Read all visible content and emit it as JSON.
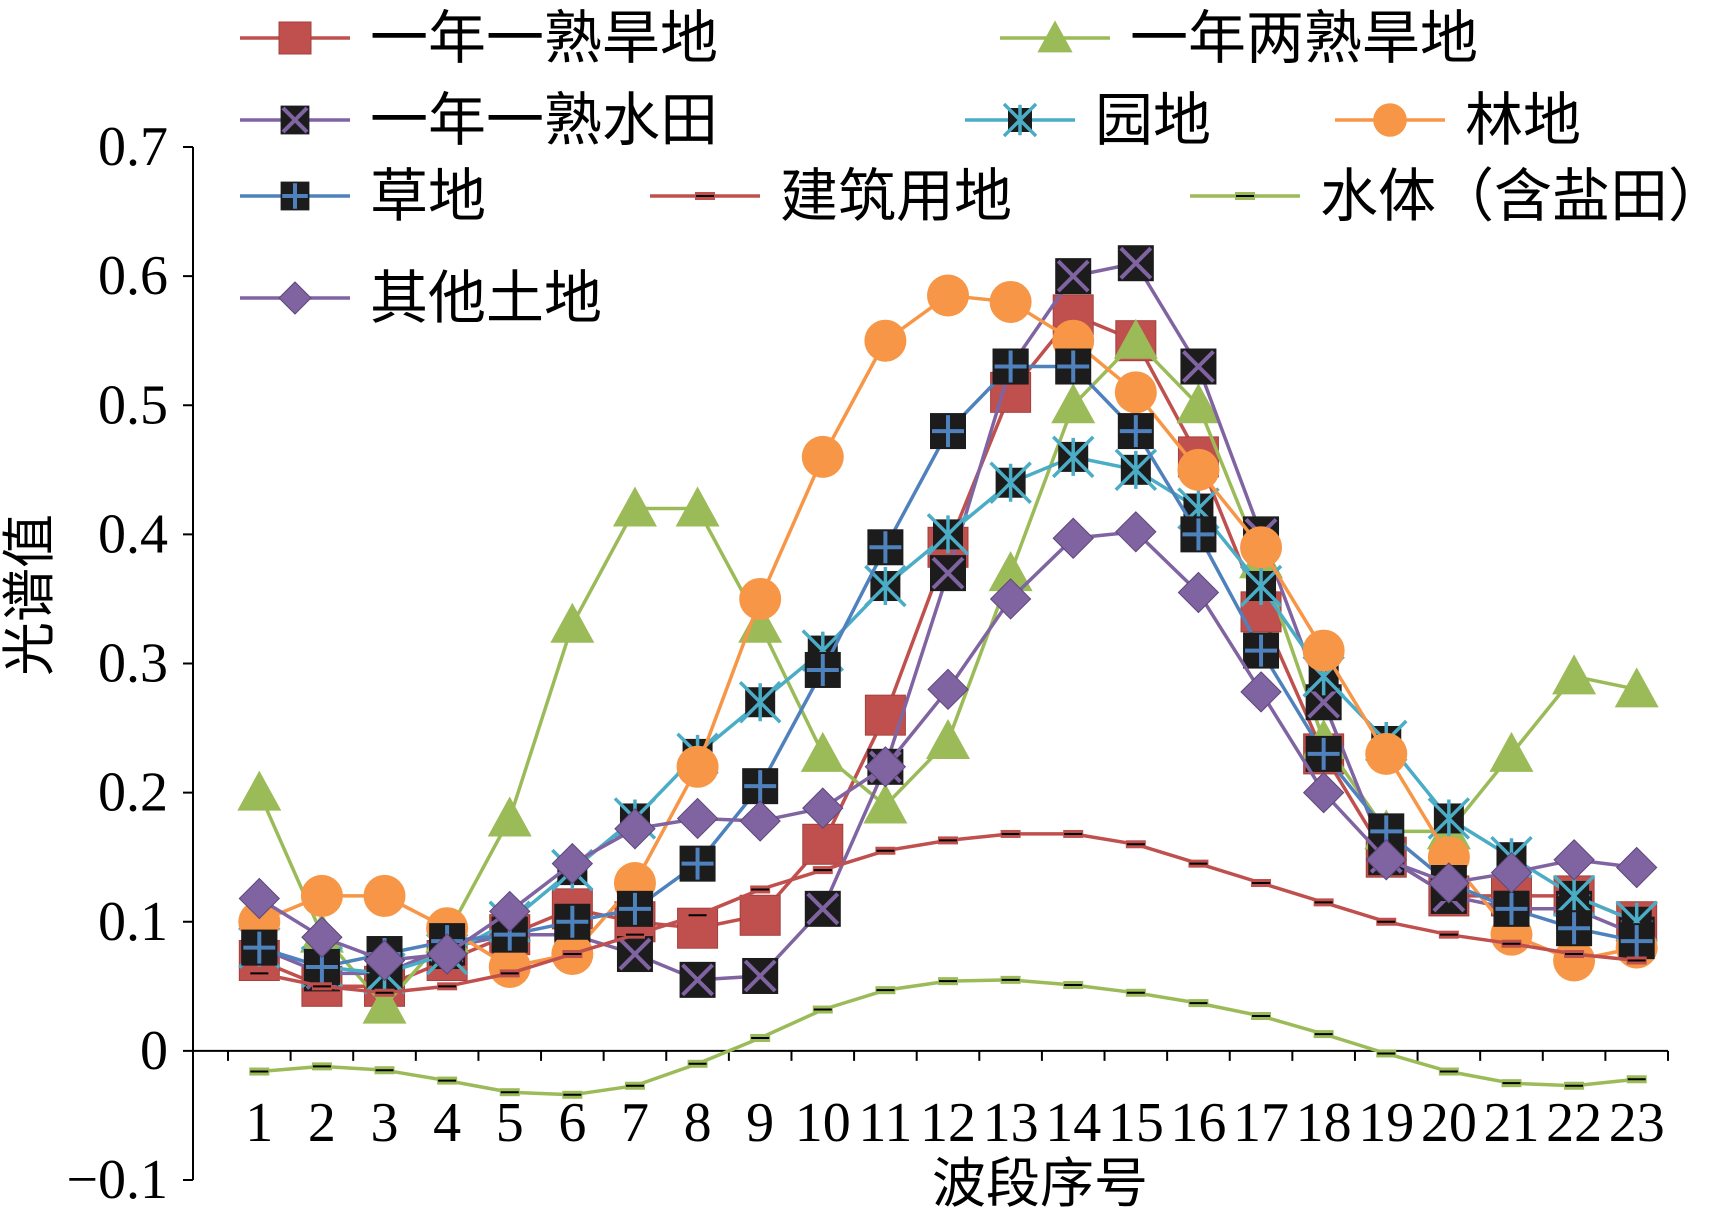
{
  "chart_data": {
    "type": "line",
    "xlabel": "波段序号",
    "ylabel": "光谱值",
    "ylim": [
      -0.1,
      0.7
    ],
    "ytick_labels": [
      "−0.1",
      "0",
      "0.1",
      "0.2",
      "0.3",
      "0.4",
      "0.5",
      "0.6",
      "0.7"
    ],
    "categories": [
      "1",
      "2",
      "3",
      "4",
      "5",
      "6",
      "7",
      "8",
      "9",
      "10",
      "11",
      "12",
      "13",
      "14",
      "15",
      "16",
      "17",
      "18",
      "19",
      "20",
      "21",
      "22",
      "23"
    ],
    "legend_position": "top",
    "series": [
      {
        "name": "一年一熟旱地",
        "color": "#C0504D",
        "marker": "square",
        "values": [
          0.07,
          0.05,
          0.05,
          0.07,
          0.09,
          0.11,
          0.1,
          0.095,
          0.105,
          0.16,
          0.26,
          0.39,
          0.51,
          0.57,
          0.55,
          0.46,
          0.34,
          0.23,
          0.15,
          0.12,
          0.12,
          0.12,
          0.1
        ]
      },
      {
        "name": "一年两熟旱地",
        "color": "#9BBB59",
        "marker": "triangle",
        "values": [
          0.2,
          0.09,
          0.035,
          0.09,
          0.18,
          0.33,
          0.42,
          0.42,
          0.33,
          0.23,
          0.19,
          0.24,
          0.37,
          0.5,
          0.55,
          0.5,
          0.38,
          0.24,
          0.17,
          0.17,
          0.23,
          0.29,
          0.28
        ]
      },
      {
        "name": "一年一熟水田",
        "color": "#8064A2",
        "marker": "x-square",
        "values": [
          0.08,
          0.06,
          0.06,
          0.08,
          0.09,
          0.09,
          0.075,
          0.055,
          0.058,
          0.11,
          0.22,
          0.37,
          0.53,
          0.6,
          0.61,
          0.53,
          0.4,
          0.27,
          0.15,
          0.12,
          0.11,
          0.11,
          0.09
        ]
      },
      {
        "name": "园地",
        "color": "#4BACC6",
        "marker": "star-square",
        "values": [
          0.08,
          0.065,
          0.06,
          0.075,
          0.1,
          0.14,
          0.18,
          0.23,
          0.27,
          0.31,
          0.36,
          0.4,
          0.44,
          0.46,
          0.45,
          0.42,
          0.36,
          0.29,
          0.24,
          0.18,
          0.15,
          0.12,
          0.1
        ]
      },
      {
        "name": "林地",
        "color": "#F79646",
        "marker": "circle",
        "values": [
          0.1,
          0.12,
          0.12,
          0.095,
          0.065,
          0.075,
          0.13,
          0.22,
          0.35,
          0.46,
          0.55,
          0.585,
          0.58,
          0.55,
          0.51,
          0.45,
          0.39,
          0.31,
          0.23,
          0.15,
          0.09,
          0.07,
          0.08
        ]
      },
      {
        "name": "草地",
        "color": "#4F81BD",
        "marker": "plus-square",
        "values": [
          0.08,
          0.065,
          0.075,
          0.085,
          0.09,
          0.1,
          0.11,
          0.145,
          0.205,
          0.295,
          0.39,
          0.48,
          0.53,
          0.53,
          0.48,
          0.4,
          0.31,
          0.23,
          0.17,
          0.13,
          0.11,
          0.095,
          0.085
        ]
      },
      {
        "name": "建筑用地",
        "color": "#C0504D",
        "marker": "dash",
        "values": [
          0.06,
          0.05,
          0.045,
          0.05,
          0.06,
          0.075,
          0.09,
          0.105,
          0.125,
          0.14,
          0.155,
          0.163,
          0.168,
          0.168,
          0.16,
          0.145,
          0.13,
          0.115,
          0.1,
          0.09,
          0.083,
          0.075,
          0.07
        ]
      },
      {
        "name": "水体（含盐田）",
        "color": "#9BBB59",
        "marker": "dash",
        "values": [
          -0.016,
          -0.012,
          -0.015,
          -0.023,
          -0.032,
          -0.034,
          -0.027,
          -0.01,
          0.01,
          0.032,
          0.047,
          0.054,
          0.055,
          0.051,
          0.045,
          0.037,
          0.027,
          0.013,
          -0.002,
          -0.016,
          -0.025,
          -0.027,
          -0.022
        ]
      },
      {
        "name": "其他土地",
        "color": "#8064A2",
        "marker": "diamond",
        "values": [
          0.118,
          0.088,
          0.07,
          0.075,
          0.108,
          0.145,
          0.172,
          0.18,
          0.178,
          0.188,
          0.22,
          0.28,
          0.35,
          0.397,
          0.402,
          0.355,
          0.278,
          0.2,
          0.148,
          0.13,
          0.138,
          0.148,
          0.142
        ]
      }
    ]
  }
}
